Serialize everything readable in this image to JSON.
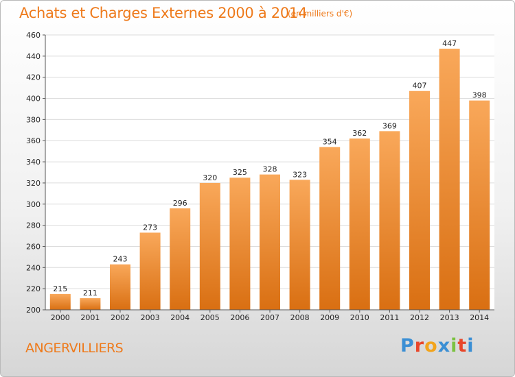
{
  "header": {
    "title": "Achats et Charges Externes 2000 à 2014",
    "subtitle": "(en milliers d'€)"
  },
  "footer": {
    "city": "ANGERVILLIERS",
    "logo_letters": [
      "P",
      "r",
      "o",
      "x",
      "i",
      "t",
      "i"
    ],
    "logo_colors": [
      "#3b8fd4",
      "#e8462a",
      "#f2a41c",
      "#3b8fd4",
      "#7cc242",
      "#e8462a",
      "#3b8fd4"
    ]
  },
  "chart_data": {
    "type": "bar",
    "title": "Achats et Charges Externes 2000 à 2014",
    "subtitle": "(en milliers d'€)",
    "categories": [
      "2000",
      "2001",
      "2002",
      "2003",
      "2004",
      "2005",
      "2006",
      "2007",
      "2008",
      "2009",
      "2010",
      "2011",
      "2012",
      "2013",
      "2014"
    ],
    "values": [
      215,
      211,
      243,
      273,
      296,
      320,
      325,
      328,
      323,
      354,
      362,
      369,
      407,
      447,
      398
    ],
    "ylim": [
      200,
      460
    ],
    "yticks": [
      200,
      220,
      240,
      260,
      280,
      300,
      320,
      340,
      360,
      380,
      400,
      420,
      440,
      460
    ],
    "grid": true,
    "bar_color_top": "#f9a85a",
    "bar_color_bottom": "#d96f12"
  }
}
